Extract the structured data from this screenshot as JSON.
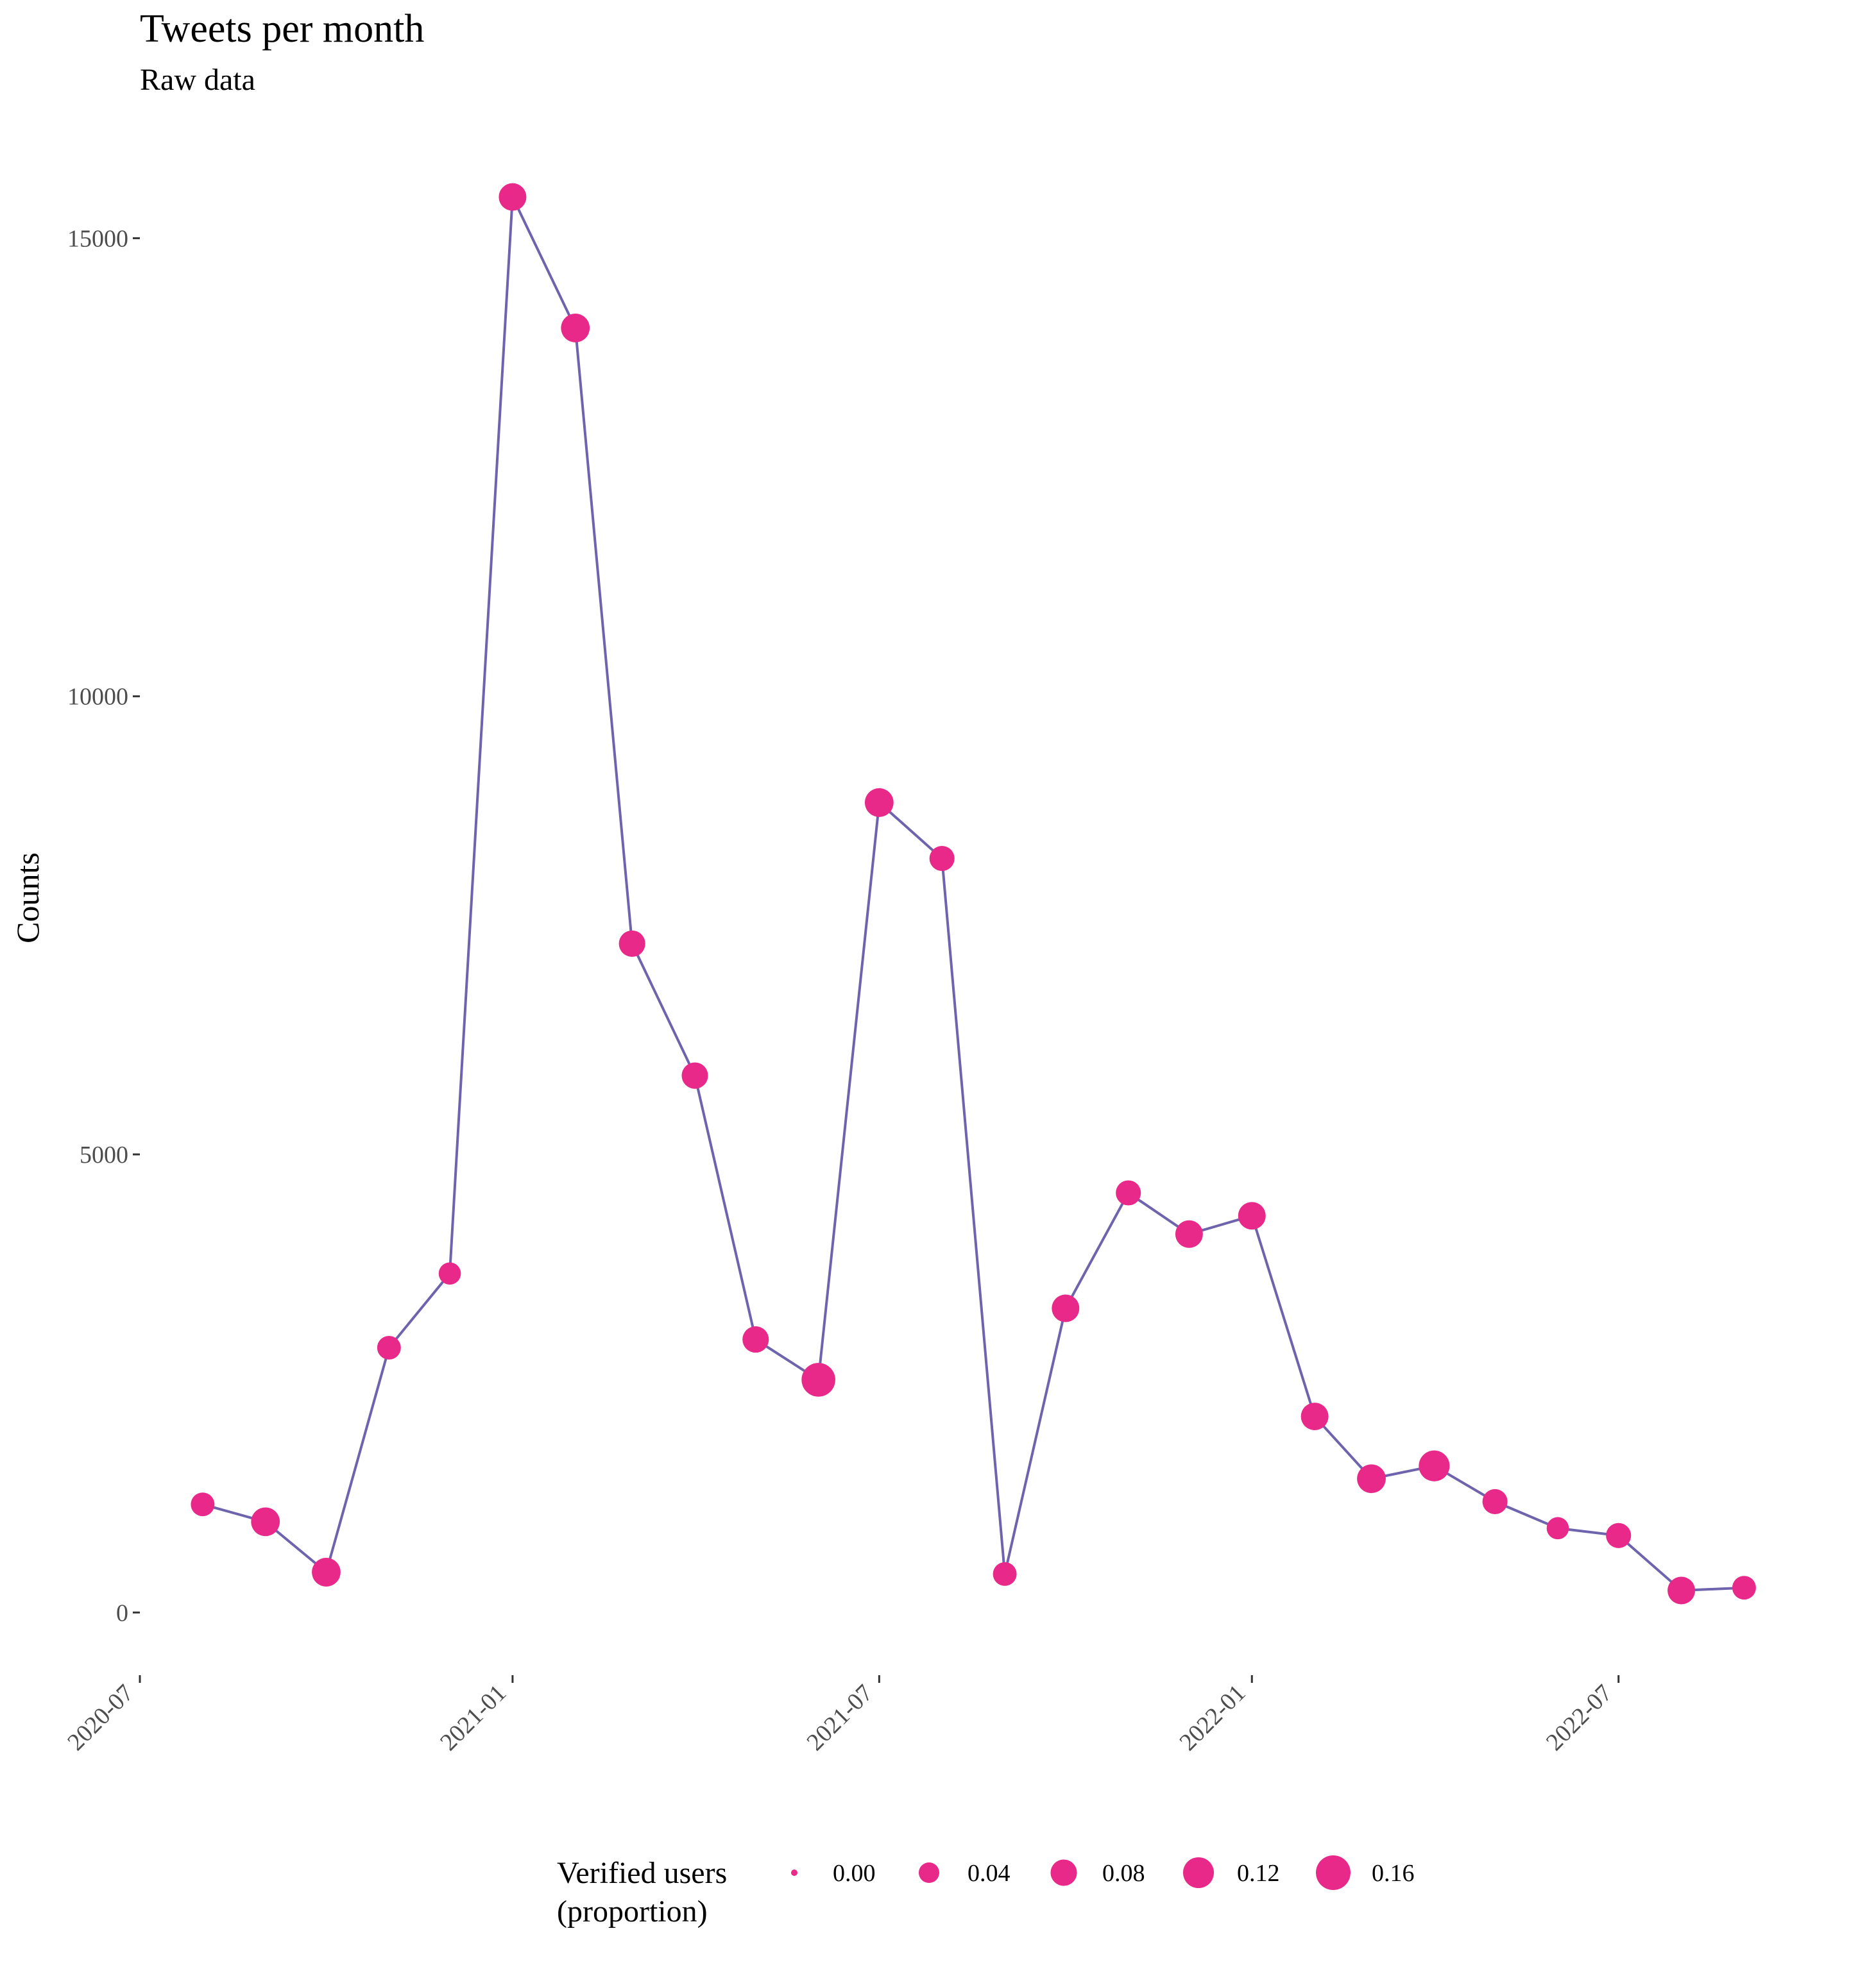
{
  "chart_data": {
    "type": "line",
    "title": "Tweets per month",
    "subtitle": "Raw data",
    "xlabel": "",
    "ylabel": "Counts",
    "x_ticks": [
      "2020-07",
      "2021-01",
      "2021-07",
      "2022-01",
      "2022-07"
    ],
    "y_ticks": [
      "0",
      "5000",
      "10000",
      "15000"
    ],
    "ylim": [
      -600,
      16200
    ],
    "xlim": [
      "2020-07-01",
      "2022-09-30"
    ],
    "grid": false,
    "legend_position": "bottom",
    "line_color": "#6e64ad",
    "point_color": "#e8298a",
    "x": [
      "2020-08",
      "2020-09",
      "2020-10",
      "2020-11",
      "2020-12",
      "2021-01",
      "2021-02",
      "2021-03",
      "2021-04",
      "2021-05",
      "2021-06",
      "2021-07",
      "2021-08",
      "2021-09",
      "2021-10",
      "2021-11",
      "2021-12",
      "2022-01",
      "2022-02",
      "2022-03",
      "2022-04",
      "2022-05",
      "2022-06",
      "2022-07",
      "2022-08",
      "2022-09"
    ],
    "series": [
      {
        "values": [
          1180,
          990,
          440,
          2890,
          3700,
          15450,
          14020,
          7300,
          5860,
          2980,
          2540,
          8840,
          8230,
          420,
          3320,
          4580,
          4130,
          4330,
          2140,
          1460,
          1600,
          1210,
          920,
          840,
          240,
          270
        ],
        "verified_proportion": [
          0.06,
          0.1,
          0.1,
          0.06,
          0.05,
          0.09,
          0.1,
          0.08,
          0.08,
          0.08,
          0.15,
          0.1,
          0.07,
          0.06,
          0.09,
          0.07,
          0.09,
          0.09,
          0.09,
          0.1,
          0.12,
          0.07,
          0.05,
          0.07,
          0.09,
          0.06
        ]
      }
    ],
    "size_legend": {
      "title_line1": "Verified users",
      "title_line2": "(proportion)",
      "labels": [
        "0.00",
        "0.04",
        "0.08",
        "0.12",
        "0.16"
      ],
      "values": [
        0.0,
        0.04,
        0.08,
        0.12,
        0.16
      ]
    }
  }
}
